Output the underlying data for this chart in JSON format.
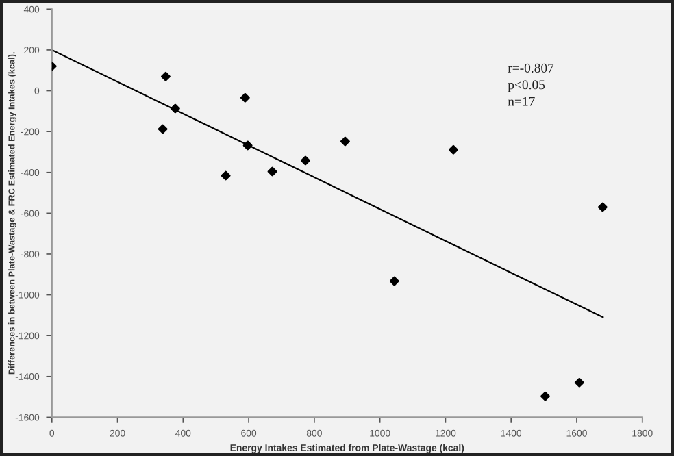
{
  "chart_data": {
    "type": "scatter",
    "xlabel": "Energy Intakes Estimated from Plate-Wastage (kcal)",
    "ylabel": "Differences in between Plate-Wastage & FRC Estimated Energy Intakes (kcal).",
    "xlim": [
      0,
      1800
    ],
    "xticks": [
      0,
      200,
      400,
      600,
      800,
      1000,
      1200,
      1400,
      1600,
      1800
    ],
    "ylim": [
      -1600,
      400
    ],
    "yticks": [
      -1600,
      -1400,
      -1200,
      -1000,
      -800,
      -600,
      -400,
      -200,
      0,
      200,
      400
    ],
    "grid": false,
    "series": [
      {
        "color": "#000000",
        "marker": "diamond",
        "x": [
          0,
          347,
          338,
          376,
          530,
          589,
          597,
          672,
          773,
          894,
          1224,
          1679,
          1044,
          1504,
          1608
        ],
        "values": [
          120,
          70,
          -188,
          -87,
          -416,
          -34,
          -268,
          -396,
          -342,
          -248,
          -289,
          -570,
          -933,
          -1497,
          -1430
        ]
      },
      {
        "type": "line",
        "color": "#000000",
        "x": [
          0,
          1680
        ],
        "values": [
          200,
          -1110
        ]
      }
    ],
    "annotations": [
      "r=-0.807",
      "p<0.05",
      "n=17"
    ]
  }
}
